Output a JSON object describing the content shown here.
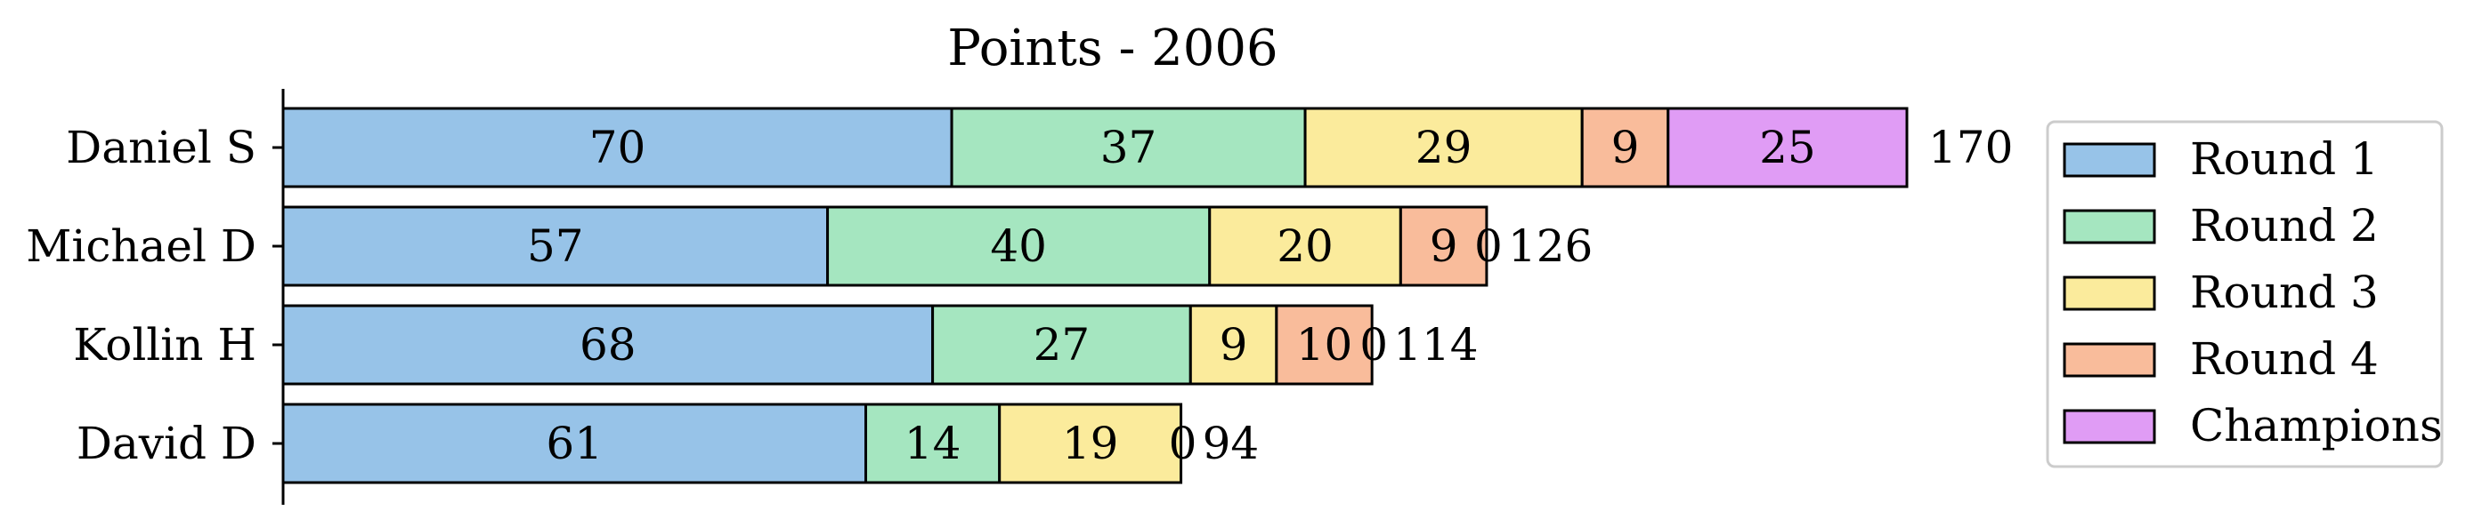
{
  "chart_data": {
    "type": "bar",
    "orientation": "horizontal",
    "stacked": true,
    "title": "Points - 2006",
    "xlabel": "",
    "ylabel": "",
    "categories": [
      "Daniel S",
      "Michael D",
      "Kollin H",
      "David D"
    ],
    "series": [
      {
        "name": "Round 1",
        "color": "#97c3e8",
        "values": [
          70,
          57,
          68,
          61
        ]
      },
      {
        "name": "Round 2",
        "color": "#a5e6c0",
        "values": [
          37,
          40,
          27,
          14
        ]
      },
      {
        "name": "Round 3",
        "color": "#fbeb9c",
        "values": [
          29,
          20,
          9,
          19
        ]
      },
      {
        "name": "Round 4",
        "color": "#f9bc9b",
        "values": [
          9,
          9,
          10,
          0
        ]
      },
      {
        "name": "Champions",
        "color": "#e09cf5",
        "values": [
          25,
          0,
          0,
          0
        ]
      }
    ],
    "totals": [
      170,
      126,
      114,
      94
    ],
    "xlim": [
      0,
      170
    ],
    "grid": false,
    "legend_position": "right",
    "edge_color": "#000000"
  }
}
